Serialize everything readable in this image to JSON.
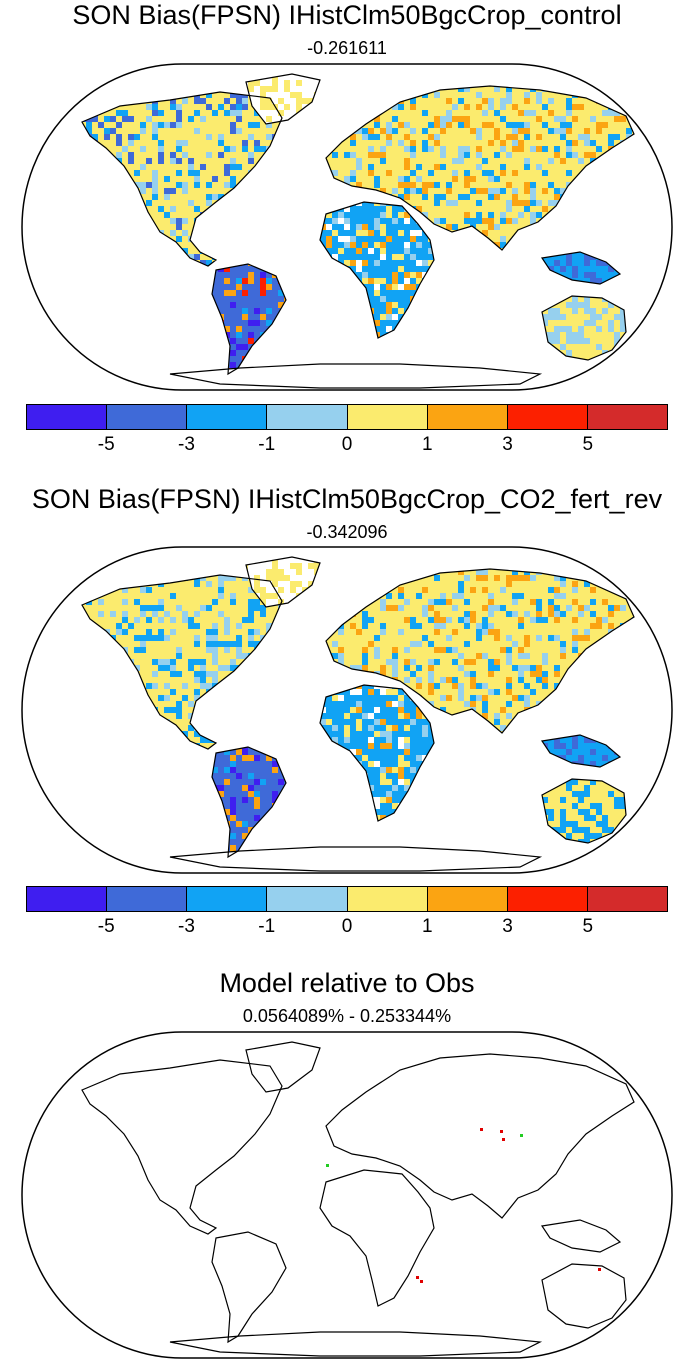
{
  "panels": [
    {
      "title": "SON Bias(FPSN) IHistClm50BgcCrop_control",
      "subtitle": "-0.261611",
      "variant": "bias"
    },
    {
      "title": "SON Bias(FPSN) IHistClm50BgcCrop_CO2_fert_rev",
      "subtitle": "-0.342096",
      "variant": "bias2"
    },
    {
      "title": "Model relative to Obs",
      "subtitle": "0.0564089% - 0.253344%",
      "variant": "relative"
    }
  ],
  "colorbar": {
    "colors": [
      "#3f1ef0",
      "#3f6ad8",
      "#11a3f4",
      "#96d0ee",
      "#fbeb6e",
      "#fba412",
      "#fc2000",
      "#d42b2b"
    ],
    "labels": [
      "-5",
      "-3",
      "-1",
      "0",
      "1",
      "3",
      "5"
    ]
  },
  "relative_markers": {
    "red": "#e00000",
    "green": "#22cc22"
  }
}
